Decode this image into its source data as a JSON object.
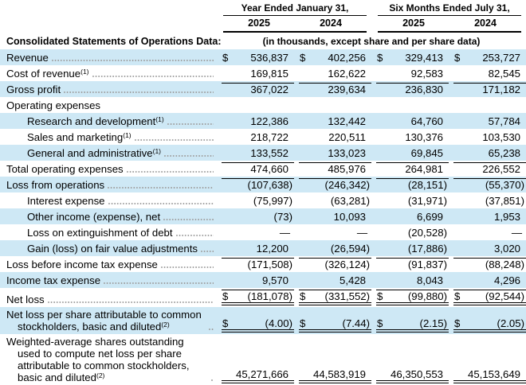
{
  "currency_symbol": "$",
  "colors": {
    "stripe_blue": "#cee8f5",
    "rule_black": "#000000",
    "leader_dot": "#9e9e9e",
    "text": "#000000"
  },
  "header": {
    "row_label_heading": "Consolidated Statements of Operations Data:",
    "units_note": "(in thousands, except share and per share data)",
    "groups": [
      {
        "title": "Year Ended January 31,",
        "years": [
          "2025",
          "2024"
        ]
      },
      {
        "title": "Six Months Ended July 31,",
        "years": [
          "2025",
          "2024"
        ]
      }
    ]
  },
  "rows": [
    {
      "label": "Revenue",
      "sup": "",
      "indent": 0,
      "stripe": true,
      "dollar": true,
      "leaders": true,
      "rule_top": false,
      "rule_bottom": "none",
      "values": [
        "536,837",
        "402,256",
        "329,413",
        "253,727"
      ]
    },
    {
      "label": "Cost of revenue",
      "sup": "(1)",
      "indent": 0,
      "stripe": false,
      "dollar": false,
      "leaders": true,
      "rule_top": false,
      "rule_bottom": "none",
      "values": [
        "169,815",
        "162,622",
        "92,583",
        "82,545"
      ]
    },
    {
      "label": "Gross profit",
      "sup": "",
      "indent": 0,
      "stripe": true,
      "dollar": false,
      "leaders": true,
      "rule_top": true,
      "rule_bottom": "none",
      "values": [
        "367,022",
        "239,634",
        "236,830",
        "171,182"
      ]
    },
    {
      "label": "Operating expenses",
      "sup": "",
      "indent": 0,
      "stripe": false,
      "dollar": false,
      "leaders": false,
      "rule_top": false,
      "rule_bottom": "none",
      "values": [
        "",
        "",
        "",
        ""
      ]
    },
    {
      "label": "Research and development",
      "sup": "(1)",
      "indent": 1,
      "stripe": true,
      "dollar": false,
      "leaders": true,
      "rule_top": false,
      "rule_bottom": "none",
      "values": [
        "122,386",
        "132,442",
        "64,760",
        "57,784"
      ]
    },
    {
      "label": "Sales and marketing",
      "sup": "(1)",
      "indent": 1,
      "stripe": false,
      "dollar": false,
      "leaders": true,
      "rule_top": false,
      "rule_bottom": "none",
      "values": [
        "218,722",
        "220,511",
        "130,376",
        "103,530"
      ]
    },
    {
      "label": "General and administrative",
      "sup": "(1)",
      "indent": 1,
      "stripe": true,
      "dollar": false,
      "leaders": true,
      "rule_top": false,
      "rule_bottom": "none",
      "values": [
        "133,552",
        "133,023",
        "69,845",
        "65,238"
      ]
    },
    {
      "label": "Total operating expenses",
      "sup": "",
      "indent": 0,
      "stripe": false,
      "dollar": false,
      "leaders": true,
      "rule_top": true,
      "rule_bottom": "none",
      "values": [
        "474,660",
        "485,976",
        "264,981",
        "226,552"
      ]
    },
    {
      "label": "Loss from operations",
      "sup": "",
      "indent": 0,
      "stripe": true,
      "dollar": false,
      "leaders": true,
      "rule_top": true,
      "rule_bottom": "none",
      "values": [
        "(107,638)",
        "(246,342)",
        "(28,151)",
        "(55,370)"
      ]
    },
    {
      "label": "Interest expense",
      "sup": "",
      "indent": 1,
      "stripe": false,
      "dollar": false,
      "leaders": true,
      "rule_top": false,
      "rule_bottom": "none",
      "values": [
        "(75,997)",
        "(63,281)",
        "(31,971)",
        "(37,851)"
      ]
    },
    {
      "label": "Other income (expense), net",
      "sup": "",
      "indent": 1,
      "stripe": true,
      "dollar": false,
      "leaders": true,
      "rule_top": false,
      "rule_bottom": "none",
      "values": [
        "(73)",
        "10,093",
        "6,699",
        "1,953"
      ]
    },
    {
      "label": "Loss on extinguishment of debt",
      "sup": "",
      "indent": 1,
      "stripe": false,
      "dollar": false,
      "leaders": true,
      "rule_top": false,
      "rule_bottom": "none",
      "values": [
        "—",
        "—",
        "(20,528)",
        "—"
      ]
    },
    {
      "label": "Gain (loss) on fair value adjustments",
      "sup": "",
      "indent": 1,
      "stripe": true,
      "dollar": false,
      "leaders": true,
      "rule_top": false,
      "rule_bottom": "none",
      "values": [
        "12,200",
        "(26,594)",
        "(17,886)",
        "3,020"
      ]
    },
    {
      "label": "Loss before income tax expense",
      "sup": "",
      "indent": 0,
      "stripe": false,
      "dollar": false,
      "leaders": true,
      "rule_top": true,
      "rule_bottom": "none",
      "values": [
        "(171,508)",
        "(326,124)",
        "(91,837)",
        "(88,248)"
      ]
    },
    {
      "label": "Income tax expense",
      "sup": "",
      "indent": 0,
      "stripe": true,
      "dollar": false,
      "leaders": true,
      "rule_top": false,
      "rule_bottom": "none",
      "values": [
        "9,570",
        "5,428",
        "8,043",
        "4,296"
      ]
    },
    {
      "label": "Net loss",
      "sup": "",
      "indent": 0,
      "stripe": false,
      "dollar": true,
      "leaders": true,
      "rule_top": true,
      "rule_bottom": "double",
      "values": [
        "(181,078)",
        "(331,552)",
        "(99,880)",
        "(92,544)"
      ]
    },
    {
      "label": "Net loss per share attributable to common stockholders, basic and diluted",
      "sup": "(2)",
      "indent": 0,
      "stripe": true,
      "dollar": true,
      "leaders": true,
      "rule_top": false,
      "rule_bottom": "double",
      "values": [
        "(4.00)",
        "(7.44)",
        "(2.15)",
        "(2.05)"
      ]
    },
    {
      "label": "Weighted-average shares outstanding used to compute net loss per share attributable to common stockholders, basic and diluted",
      "sup": "(2)",
      "indent": 0,
      "stripe": false,
      "dollar": false,
      "leaders": true,
      "rule_top": false,
      "rule_bottom": "double",
      "values": [
        "45,271,666",
        "44,583,919",
        "46,350,553",
        "45,153,649"
      ]
    }
  ]
}
